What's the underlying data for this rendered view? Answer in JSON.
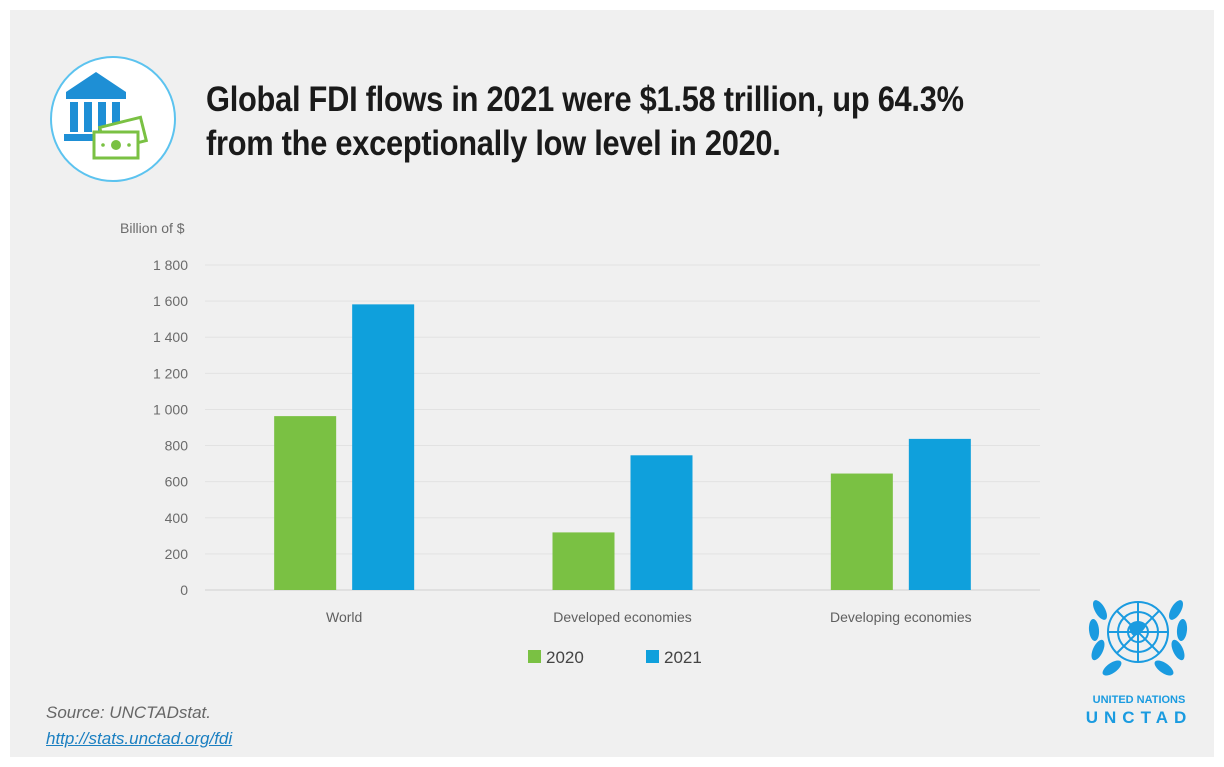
{
  "title_lines": [
    "Global FDI flows in 2021 were $1.58 trillion, up 64.3%",
    "from the exceptionally low level in 2020."
  ],
  "icons": {
    "header": "bank-money-icon",
    "logo": "un-emblem-icon"
  },
  "colors": {
    "series_2020": "#7ac143",
    "series_2021": "#0fa0dc",
    "icon_blue": "#1e8fd5",
    "icon_green": "#7ac143"
  },
  "chart_data": {
    "type": "bar",
    "ylabel": "Billion of $",
    "ylim": [
      0,
      1800
    ],
    "yticks": [
      "1 800",
      "1 600",
      "1 400",
      "1 200",
      "1 000",
      "800",
      "600",
      "400",
      "200",
      "0"
    ],
    "ytick_values": [
      1800,
      1600,
      1400,
      1200,
      1000,
      800,
      600,
      400,
      200,
      0
    ],
    "categories": [
      "World",
      "Developed economies",
      "Developing economies"
    ],
    "series": [
      {
        "name": "2020",
        "values": [
          963,
          319,
          645
        ]
      },
      {
        "name": "2021",
        "values": [
          1582,
          746,
          837
        ]
      }
    ],
    "grid": true,
    "legend_position": "bottom-center"
  },
  "source": {
    "label": "Source: UNCTADstat.",
    "link": "http://stats.unctad.org/fdi"
  },
  "logo": {
    "line1": "UNITED NATIONS",
    "line2": "UNCTAD"
  }
}
